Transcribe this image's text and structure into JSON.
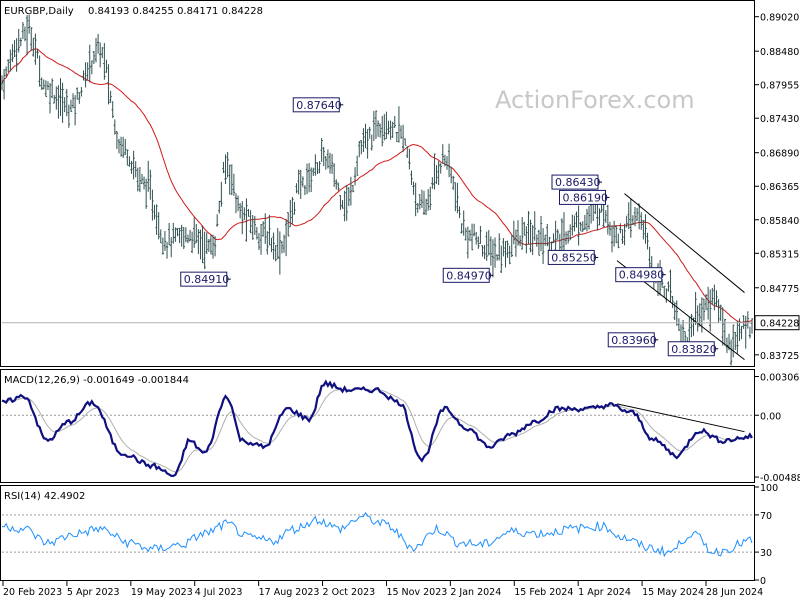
{
  "header": {
    "symbol": "EURGBP,Daily",
    "ohlc": "0.84193 0.84255 0.84171 0.84228"
  },
  "watermark": "ActionForex.com",
  "current_price": "0.84228",
  "macd_header": "MACD(12,26,9) -0.001649 -0.001844",
  "rsi_header": "RSI(14) 42.4902",
  "colors": {
    "bars": "#2f4f4f",
    "ma": "#d11a1a",
    "macd": "#101080",
    "signal": "#b0b0b0",
    "rsi": "#1e90ff",
    "trendline": "#000000"
  },
  "chart_data": [
    {
      "type": "bar",
      "panel": "price",
      "title": "EURGBP,Daily",
      "y_ticks": [
        "0.89020",
        "0.88480",
        "0.87955",
        "0.87430",
        "0.86890",
        "0.86365",
        "0.85840",
        "0.85315",
        "0.84775",
        "0.84228",
        "0.83725"
      ],
      "ylim": [
        0.8355,
        0.8925
      ],
      "x_ticks": [
        "20 Feb 2023",
        "5 Apr 2023",
        "19 May 2023",
        "4 Jul 2023",
        "17 Aug 2023",
        "2 Oct 2023",
        "15 Nov 2023",
        "2 Jan 2024",
        "15 Feb 2024",
        "1 Apr 2024",
        "15 May 2024",
        "28 Jun 2024"
      ],
      "anchors": [
        {
          "t": 0,
          "v": 0.88
        },
        {
          "t": 0.02,
          "v": 0.886
        },
        {
          "t": 0.035,
          "v": 0.888
        },
        {
          "t": 0.06,
          "v": 0.879
        },
        {
          "t": 0.09,
          "v": 0.876
        },
        {
          "t": 0.13,
          "v": 0.885
        },
        {
          "t": 0.16,
          "v": 0.87
        },
        {
          "t": 0.19,
          "v": 0.864
        },
        {
          "t": 0.22,
          "v": 0.855
        },
        {
          "t": 0.25,
          "v": 0.856
        },
        {
          "t": 0.28,
          "v": 0.854
        },
        {
          "t": 0.3,
          "v": 0.867
        },
        {
          "t": 0.32,
          "v": 0.859
        },
        {
          "t": 0.35,
          "v": 0.856
        },
        {
          "t": 0.37,
          "v": 0.854
        },
        {
          "t": 0.4,
          "v": 0.864
        },
        {
          "t": 0.43,
          "v": 0.868
        },
        {
          "t": 0.46,
          "v": 0.861
        },
        {
          "t": 0.48,
          "v": 0.87
        },
        {
          "t": 0.51,
          "v": 0.874
        },
        {
          "t": 0.53,
          "v": 0.872
        },
        {
          "t": 0.56,
          "v": 0.86
        },
        {
          "t": 0.59,
          "v": 0.868
        },
        {
          "t": 0.62,
          "v": 0.856
        },
        {
          "t": 0.66,
          "v": 0.853
        },
        {
          "t": 0.7,
          "v": 0.856
        },
        {
          "t": 0.74,
          "v": 0.855
        },
        {
          "t": 0.77,
          "v": 0.858
        },
        {
          "t": 0.8,
          "v": 0.86
        },
        {
          "t": 0.82,
          "v": 0.856
        },
        {
          "t": 0.85,
          "v": 0.859
        },
        {
          "t": 0.87,
          "v": 0.85
        },
        {
          "t": 0.89,
          "v": 0.847
        },
        {
          "t": 0.91,
          "v": 0.84
        },
        {
          "t": 0.93,
          "v": 0.844
        },
        {
          "t": 0.95,
          "v": 0.846
        },
        {
          "t": 0.97,
          "v": 0.839
        },
        {
          "t": 1.0,
          "v": 0.8423
        }
      ],
      "levels": [
        {
          "label": "0.87640",
          "value": 0.8764,
          "t": 0.455
        },
        {
          "label": "0.84910",
          "value": 0.8491,
          "t": 0.305
        },
        {
          "label": "0.84970",
          "value": 0.8497,
          "t": 0.655
        },
        {
          "label": "0.86430",
          "value": 0.8643,
          "t": 0.8
        },
        {
          "label": "0.86190",
          "value": 0.8619,
          "t": 0.81
        },
        {
          "label": "0.85250",
          "value": 0.8525,
          "t": 0.795
        },
        {
          "label": "0.84980",
          "value": 0.8498,
          "t": 0.885
        },
        {
          "label": "0.83960",
          "value": 0.8396,
          "t": 0.875
        },
        {
          "label": "0.83820",
          "value": 0.8382,
          "t": 0.955
        }
      ]
    },
    {
      "type": "line",
      "panel": "macd",
      "y_ticks": [
        "0.003066",
        "0.00",
        "-0.004888"
      ],
      "ylim": [
        -0.0052,
        0.0035
      ],
      "anchors": [
        {
          "t": 0,
          "v": 0.001
        },
        {
          "t": 0.03,
          "v": 0.0015
        },
        {
          "t": 0.06,
          "v": -0.002
        },
        {
          "t": 0.09,
          "v": -0.0005
        },
        {
          "t": 0.12,
          "v": 0.001
        },
        {
          "t": 0.16,
          "v": -0.003
        },
        {
          "t": 0.2,
          "v": -0.004
        },
        {
          "t": 0.23,
          "v": -0.0048
        },
        {
          "t": 0.25,
          "v": -0.002
        },
        {
          "t": 0.27,
          "v": -0.003
        },
        {
          "t": 0.3,
          "v": 0.0015
        },
        {
          "t": 0.32,
          "v": -0.002
        },
        {
          "t": 0.35,
          "v": -0.0025
        },
        {
          "t": 0.38,
          "v": 0.0005
        },
        {
          "t": 0.41,
          "v": -0.0003
        },
        {
          "t": 0.43,
          "v": 0.0025
        },
        {
          "t": 0.46,
          "v": 0.002
        },
        {
          "t": 0.5,
          "v": 0.002
        },
        {
          "t": 0.53,
          "v": 0.001
        },
        {
          "t": 0.56,
          "v": -0.0035
        },
        {
          "t": 0.59,
          "v": 0.0005
        },
        {
          "t": 0.62,
          "v": -0.001
        },
        {
          "t": 0.65,
          "v": -0.0025
        },
        {
          "t": 0.68,
          "v": -0.0015
        },
        {
          "t": 0.71,
          "v": -0.0005
        },
        {
          "t": 0.74,
          "v": 0.0005
        },
        {
          "t": 0.78,
          "v": 0.0005
        },
        {
          "t": 0.81,
          "v": 0.0008
        },
        {
          "t": 0.84,
          "v": 0.0002
        },
        {
          "t": 0.87,
          "v": -0.002
        },
        {
          "t": 0.9,
          "v": -0.0032
        },
        {
          "t": 0.93,
          "v": -0.0012
        },
        {
          "t": 0.96,
          "v": -0.002
        },
        {
          "t": 1.0,
          "v": -0.0017
        }
      ]
    },
    {
      "type": "line",
      "panel": "rsi",
      "y_ticks": [
        "100",
        "70",
        "30",
        "0"
      ],
      "ylim": [
        0,
        100
      ],
      "anchors": [
        {
          "t": 0,
          "v": 58
        },
        {
          "t": 0.03,
          "v": 55
        },
        {
          "t": 0.06,
          "v": 40
        },
        {
          "t": 0.1,
          "v": 50
        },
        {
          "t": 0.13,
          "v": 55
        },
        {
          "t": 0.17,
          "v": 40
        },
        {
          "t": 0.2,
          "v": 33
        },
        {
          "t": 0.24,
          "v": 38
        },
        {
          "t": 0.27,
          "v": 50
        },
        {
          "t": 0.3,
          "v": 60
        },
        {
          "t": 0.33,
          "v": 45
        },
        {
          "t": 0.36,
          "v": 42
        },
        {
          "t": 0.39,
          "v": 55
        },
        {
          "t": 0.42,
          "v": 65
        },
        {
          "t": 0.45,
          "v": 55
        },
        {
          "t": 0.48,
          "v": 68
        },
        {
          "t": 0.51,
          "v": 60
        },
        {
          "t": 0.55,
          "v": 35
        },
        {
          "t": 0.58,
          "v": 55
        },
        {
          "t": 0.61,
          "v": 40
        },
        {
          "t": 0.64,
          "v": 38
        },
        {
          "t": 0.68,
          "v": 52
        },
        {
          "t": 0.72,
          "v": 50
        },
        {
          "t": 0.76,
          "v": 55
        },
        {
          "t": 0.8,
          "v": 58
        },
        {
          "t": 0.83,
          "v": 45
        },
        {
          "t": 0.86,
          "v": 35
        },
        {
          "t": 0.89,
          "v": 30
        },
        {
          "t": 0.92,
          "v": 50
        },
        {
          "t": 0.95,
          "v": 30
        },
        {
          "t": 1.0,
          "v": 42
        }
      ]
    }
  ]
}
